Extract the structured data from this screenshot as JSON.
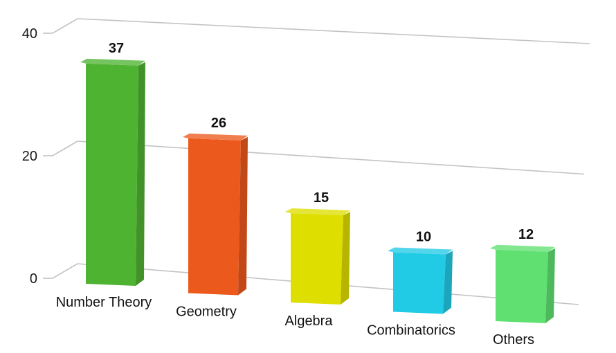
{
  "chart_data": {
    "type": "bar",
    "title": "",
    "xlabel": "",
    "ylabel": "",
    "ylim": [
      0,
      40
    ],
    "yticks": [
      0,
      20,
      40
    ],
    "grid": true,
    "categories": [
      "Number Theory",
      "Geometry",
      "Algebra",
      "Combinatorics",
      "Others"
    ],
    "values": [
      37,
      26,
      15,
      10,
      12
    ],
    "colors": [
      "#4fb332",
      "#ec591c",
      "#dede00",
      "#22cbe5",
      "#5fe070"
    ]
  }
}
